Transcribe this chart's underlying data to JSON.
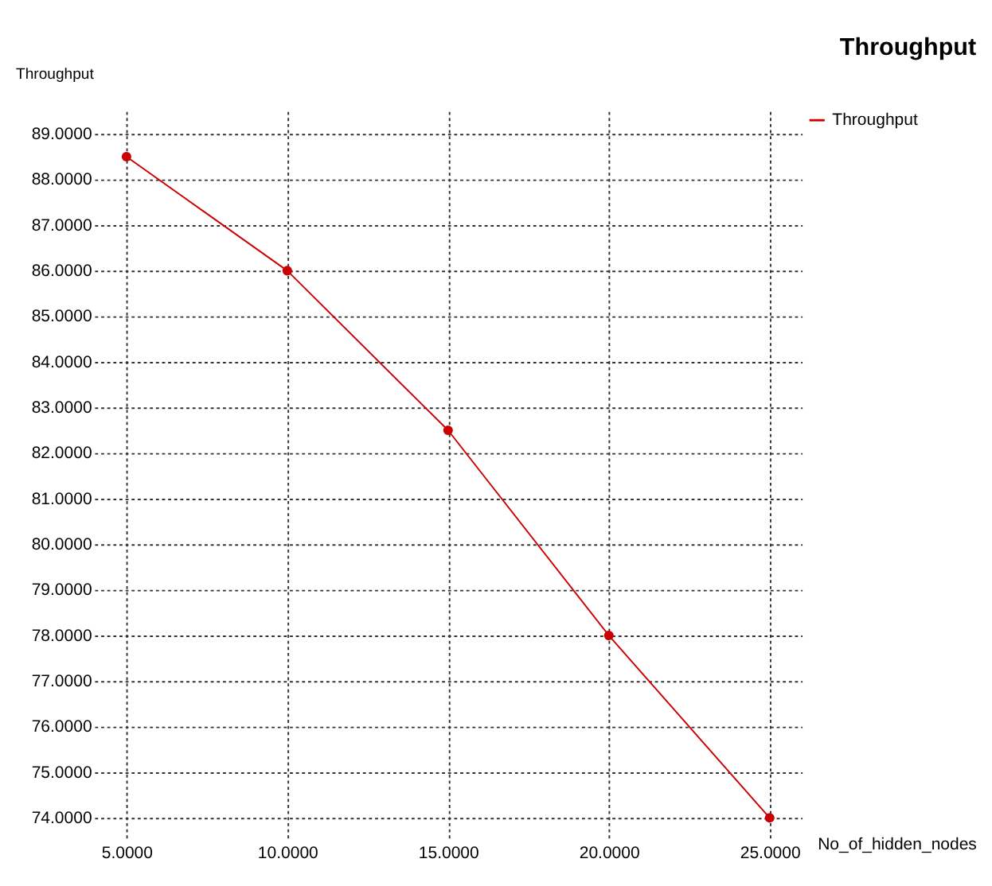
{
  "chart_data": {
    "type": "line",
    "title": "Throughput",
    "xlabel": "No_of_hidden_nodes",
    "ylabel": "Throughput",
    "x": [
      5,
      10,
      15,
      20,
      25
    ],
    "series": [
      {
        "name": "Throughput",
        "color": "#cc0000",
        "values": [
          88.5,
          86.0,
          82.5,
          78.0,
          74.0
        ]
      }
    ],
    "xlim": [
      4,
      26
    ],
    "xticks": [
      {
        "value": 5,
        "label": "5.0000"
      },
      {
        "value": 10,
        "label": "10.0000"
      },
      {
        "value": 15,
        "label": "15.0000"
      },
      {
        "value": 20,
        "label": "20.0000"
      },
      {
        "value": 25,
        "label": "25.0000"
      }
    ],
    "ylim": [
      73.5,
      89.5
    ],
    "yticks": [
      {
        "value": 74,
        "label": "74.0000"
      },
      {
        "value": 75,
        "label": "75.0000"
      },
      {
        "value": 76,
        "label": "76.0000"
      },
      {
        "value": 77,
        "label": "77.0000"
      },
      {
        "value": 78,
        "label": "78.0000"
      },
      {
        "value": 79,
        "label": "79.0000"
      },
      {
        "value": 80,
        "label": "80.0000"
      },
      {
        "value": 81,
        "label": "81.0000"
      },
      {
        "value": 82,
        "label": "82.0000"
      },
      {
        "value": 83,
        "label": "83.0000"
      },
      {
        "value": 84,
        "label": "84.0000"
      },
      {
        "value": 85,
        "label": "85.0000"
      },
      {
        "value": 86,
        "label": "86.0000"
      },
      {
        "value": 87,
        "label": "87.0000"
      },
      {
        "value": 88,
        "label": "88.0000"
      },
      {
        "value": 89,
        "label": "89.0000"
      }
    ],
    "grid": true,
    "legend": "top right",
    "marker": "circle",
    "line_style": "solid"
  }
}
